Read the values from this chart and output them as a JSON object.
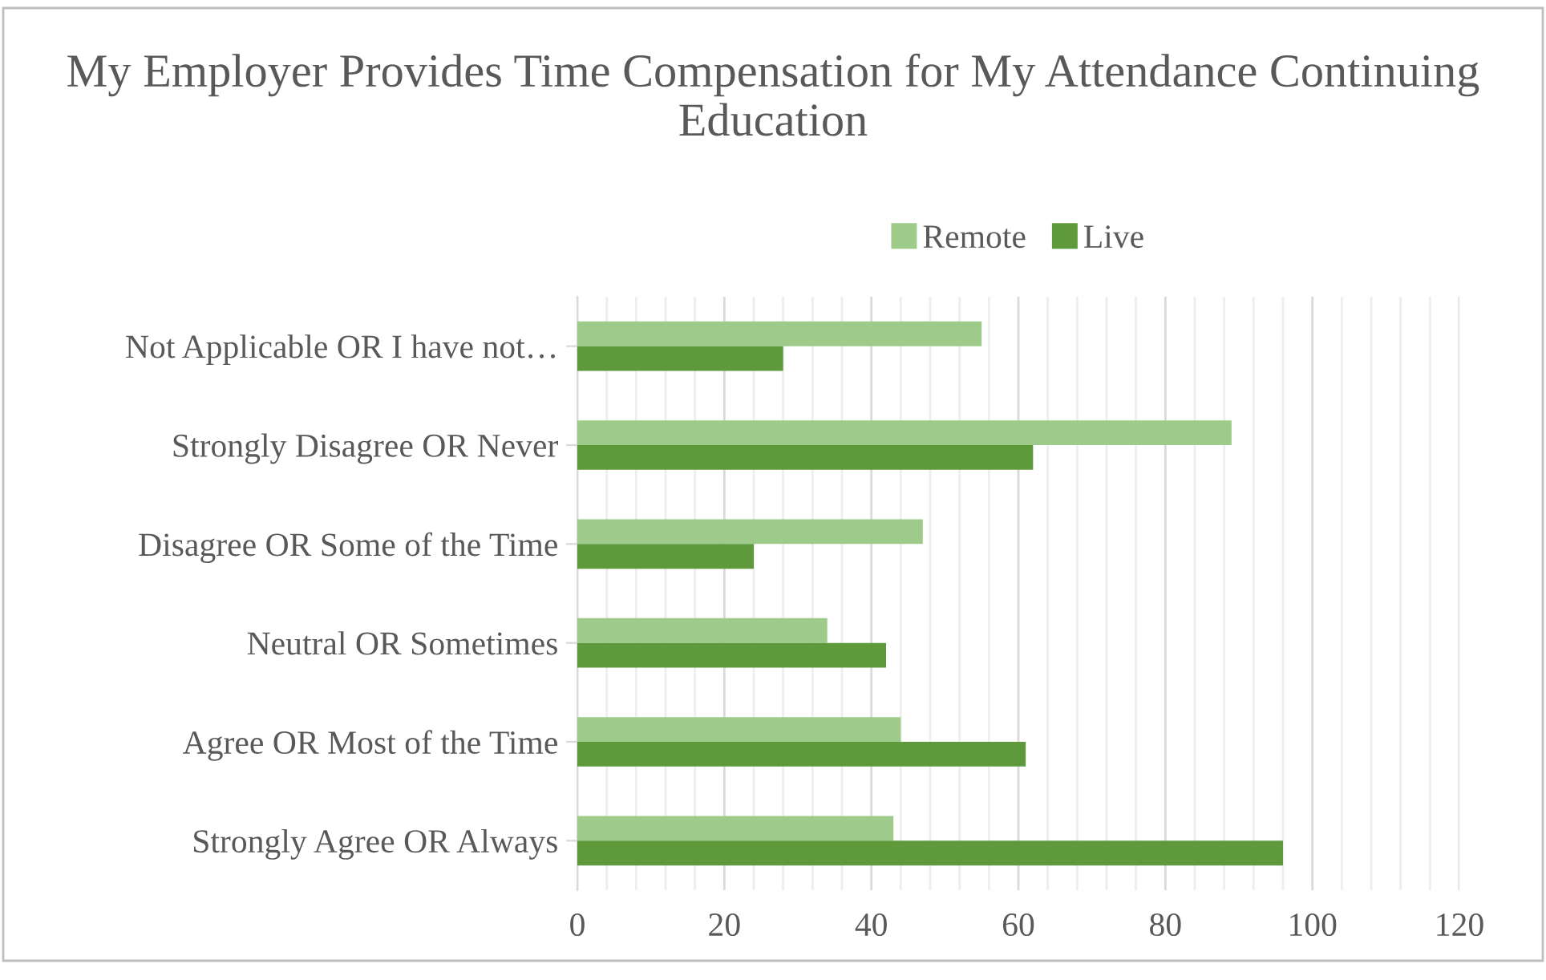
{
  "chart_data": {
    "type": "bar",
    "orientation": "horizontal",
    "title": "My Employer Provides Time Compensation for My Attendance Continuing Education",
    "categories": [
      "Not Applicable OR I have not…",
      "Strongly Disagree OR Never",
      "Disagree OR Some of the Time",
      "Neutral OR Sometimes",
      "Agree OR Most of the Time",
      "Strongly Agree OR Always"
    ],
    "series": [
      {
        "name": "Remote",
        "color": "#9fcb8a",
        "values": [
          55,
          89,
          47,
          34,
          44,
          43
        ]
      },
      {
        "name": "Live",
        "color": "#5e9a3c",
        "values": [
          28,
          62,
          24,
          42,
          61,
          96
        ]
      }
    ],
    "xlim": [
      0,
      120
    ],
    "xticks": [
      0,
      {
        "value": 4,
        "label": null
      },
      {
        "value": 8,
        "label": null
      },
      {
        "value": 12,
        "label": null
      },
      {
        "value": 16,
        "label": null
      },
      20,
      {
        "value": 24,
        "label": null
      },
      {
        "value": 28,
        "label": null
      },
      {
        "value": 32,
        "label": null
      },
      {
        "value": 36,
        "label": null
      },
      40,
      {
        "value": 44,
        "label": null
      },
      {
        "value": 48,
        "label": null
      },
      {
        "value": 52,
        "label": null
      },
      {
        "value": 56,
        "label": null
      },
      60,
      {
        "value": 64,
        "label": null
      },
      {
        "value": 68,
        "label": null
      },
      {
        "value": 72,
        "label": null
      },
      {
        "value": 76,
        "label": null
      },
      80,
      {
        "value": 84,
        "label": null
      },
      {
        "value": 88,
        "label": null
      },
      {
        "value": 92,
        "label": null
      },
      {
        "value": 96,
        "label": null
      },
      100,
      {
        "value": 104,
        "label": null
      },
      {
        "value": 108,
        "label": null
      },
      {
        "value": 112,
        "label": null
      },
      {
        "value": 116,
        "label": null
      },
      120
    ],
    "grid": "x",
    "legend": "top"
  }
}
